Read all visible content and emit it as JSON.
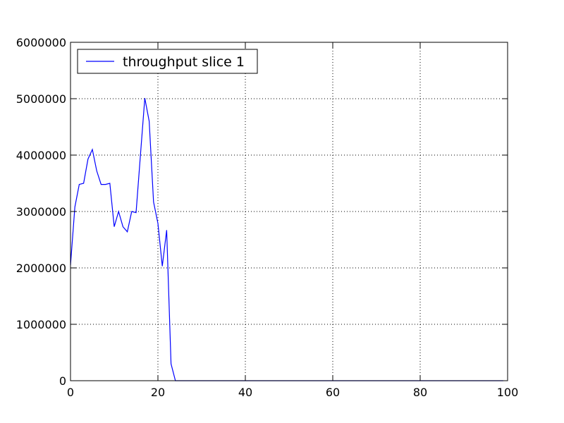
{
  "chart_data": {
    "type": "line",
    "title": "",
    "xlabel": "",
    "ylabel": "",
    "xlim": [
      0,
      100
    ],
    "ylim": [
      0,
      6000000
    ],
    "x_ticks": [
      0,
      20,
      40,
      60,
      80,
      100
    ],
    "x_tick_labels": [
      "0",
      "20",
      "40",
      "60",
      "80",
      "100"
    ],
    "y_ticks": [
      0,
      1000000,
      2000000,
      3000000,
      4000000,
      5000000,
      6000000
    ],
    "y_tick_labels": [
      "0",
      "1000000",
      "2000000",
      "3000000",
      "4000000",
      "5000000",
      "6000000"
    ],
    "grid": true,
    "legend_position": "top-left",
    "series": [
      {
        "name": "throughput slice 1",
        "color": "#0000ff",
        "x": [
          0,
          1,
          2,
          3,
          4,
          5,
          6,
          7,
          8,
          9,
          10,
          11,
          12,
          13,
          14,
          15,
          16,
          17,
          18,
          19,
          20,
          21,
          22,
          23,
          24,
          25,
          30,
          40,
          50,
          60,
          70,
          80,
          90,
          99
        ],
        "y": [
          2050000,
          3080000,
          3480000,
          3500000,
          3930000,
          4100000,
          3720000,
          3480000,
          3480000,
          3500000,
          2730000,
          3000000,
          2730000,
          2640000,
          3000000,
          2980000,
          4000000,
          5010000,
          4600000,
          3170000,
          2790000,
          2030000,
          2670000,
          300000,
          0,
          0,
          0,
          0,
          0,
          0,
          0,
          0,
          0,
          0
        ]
      }
    ]
  }
}
